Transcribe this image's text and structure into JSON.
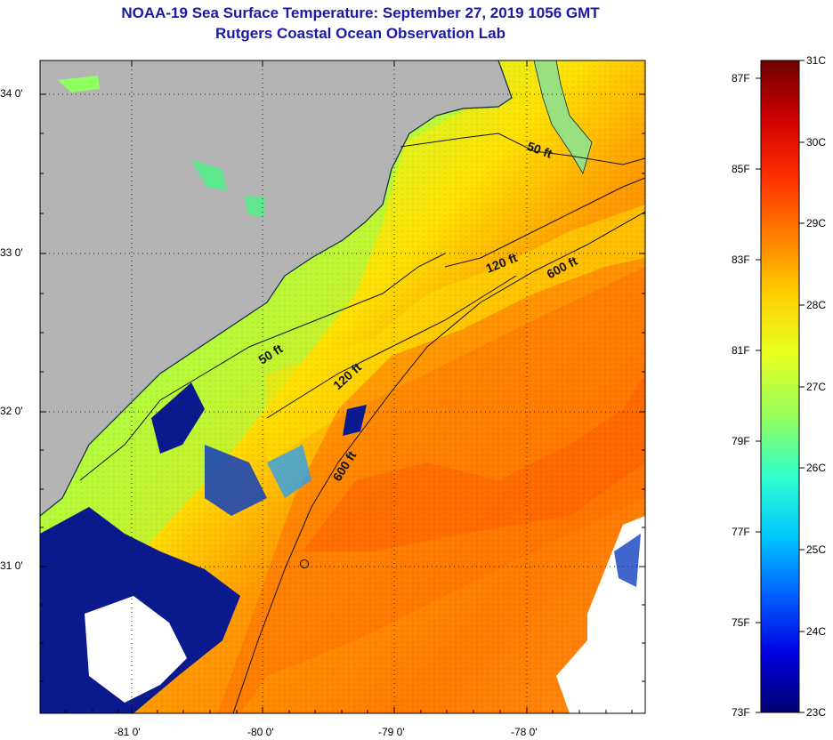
{
  "title": {
    "line1": "NOAA-19 Sea Surface Temperature:  September 27, 2019 1056 GMT",
    "line2": "Rutgers Coastal Ocean Observation Lab"
  },
  "colors": {
    "title": "#1a1aa8",
    "land": "#b4b4b4",
    "cloud": "#ffffff",
    "cold_patch": "#0a1a8c"
  },
  "map": {
    "lat_labels": [
      "34 0'",
      "33 0'",
      "32 0'",
      "31 0'"
    ],
    "lon_labels": [
      "-81 0'",
      "-80 0'",
      "-79 0'",
      "-78 0'"
    ],
    "lat_range": [
      30.2,
      34.2
    ],
    "lon_range": [
      -81.5,
      -77.2
    ],
    "marker": "station-circle"
  },
  "contours": [
    {
      "label": "50 ft",
      "angle": 20
    },
    {
      "label": "50 ft",
      "angle": -32
    },
    {
      "label": "120 ft",
      "angle": -22
    },
    {
      "label": "120 ft",
      "angle": -42
    },
    {
      "label": "600 ft",
      "angle": -28
    },
    {
      "label": "600 ft",
      "angle": -58
    }
  ],
  "colorbar": {
    "celsius_labels": [
      "31C",
      "30C",
      "29C",
      "28C",
      "27C",
      "26C",
      "25C",
      "24C",
      "23C"
    ],
    "fahrenheit_labels": [
      "87F",
      "85F",
      "83F",
      "81F",
      "79F",
      "77F",
      "75F",
      "73F"
    ],
    "range_c": [
      23,
      31
    ],
    "stops": [
      "#00006e",
      "#0000e0",
      "#0060ff",
      "#00c8ff",
      "#30ffd0",
      "#90ff60",
      "#e8ff20",
      "#ffd000",
      "#ff8000",
      "#ff3000",
      "#d00000",
      "#700000"
    ]
  }
}
